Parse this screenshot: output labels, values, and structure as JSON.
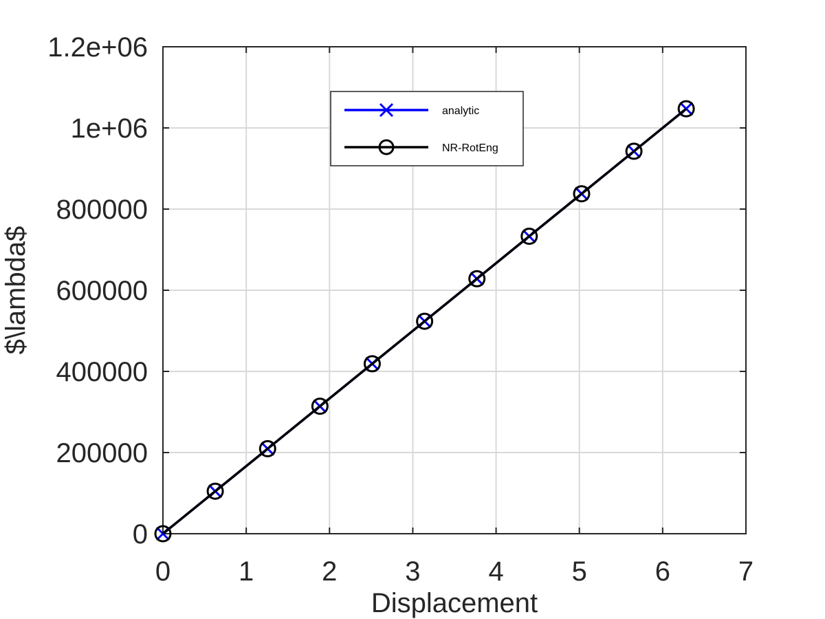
{
  "chart_data": {
    "type": "line",
    "title": "",
    "xlabel": "Displacement",
    "ylabel": "$\\lambda$",
    "xlim": [
      0,
      7
    ],
    "ylim": [
      0,
      1200000
    ],
    "xticks": [
      0,
      1,
      2,
      3,
      4,
      5,
      6,
      7
    ],
    "xtick_labels": [
      "0",
      "1",
      "2",
      "3",
      "4",
      "5",
      "6",
      "7"
    ],
    "yticks": [
      0,
      200000,
      400000,
      600000,
      800000,
      1000000,
      1200000
    ],
    "ytick_labels": [
      "0",
      "200000",
      "400000",
      "600000",
      "800000",
      "1e+06",
      "1.2e+06"
    ],
    "grid": true,
    "legend_position": "top-center",
    "series": [
      {
        "name": "analytic",
        "color": "#0000ff",
        "marker": "x",
        "x": [
          0,
          0.628,
          1.257,
          1.885,
          2.513,
          3.142,
          3.77,
          4.398,
          5.027,
          5.655,
          6.283
        ],
        "y": [
          0,
          104720,
          209440,
          314160,
          418880,
          523600,
          628320,
          733040,
          837760,
          942480,
          1047200
        ]
      },
      {
        "name": "NR-RotEng",
        "color": "#000000",
        "marker": "o",
        "x": [
          0,
          0.628,
          1.257,
          1.885,
          2.513,
          3.142,
          3.77,
          4.398,
          5.027,
          5.655,
          6.283
        ],
        "y": [
          0,
          104720,
          209440,
          314160,
          418880,
          523600,
          628320,
          733040,
          837760,
          942480,
          1047200
        ]
      }
    ]
  }
}
